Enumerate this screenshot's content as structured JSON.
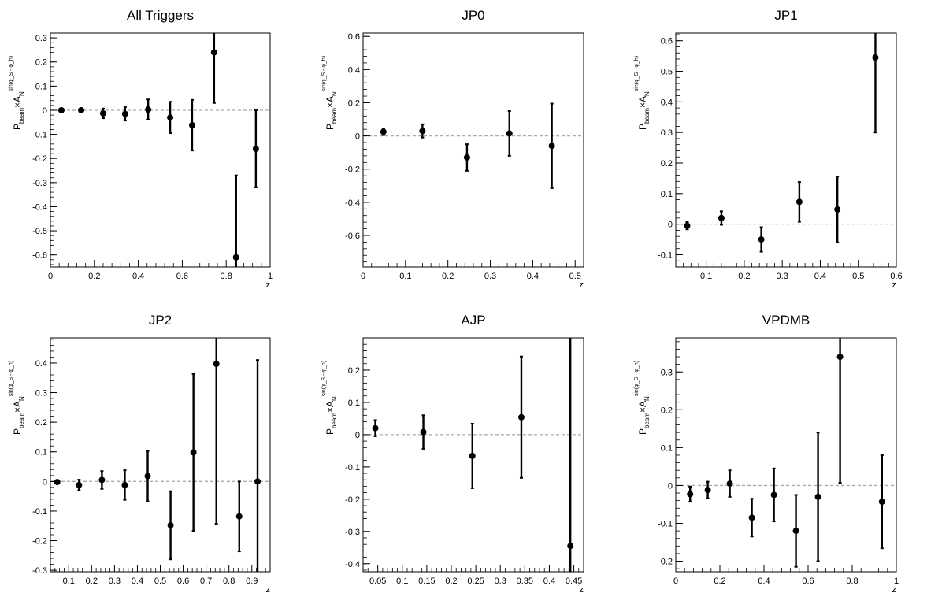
{
  "chart_data": [
    {
      "type": "scatter",
      "title": "All Triggers",
      "xlabel": "z",
      "ylabel": {
        "main": "P",
        "sub": "beam",
        "times": "×A",
        "sub2": "N",
        "sup": "sin(φ_S - φ_h)"
      },
      "xlim": [
        0,
        1.0
      ],
      "ylim": [
        -0.65,
        0.32
      ],
      "xticks": [
        0,
        0.2,
        0.4,
        0.6,
        0.8,
        1
      ],
      "xtick_labels": [
        "0",
        "0.2",
        "0.4",
        "0.6",
        "0.8",
        "1"
      ],
      "yticks": [
        0.3,
        0.2,
        0.1,
        0,
        -0.1,
        -0.2,
        -0.3,
        -0.4,
        -0.5,
        -0.6
      ],
      "ytick_labels": [
        "0.3",
        "0.2",
        "0.1",
        "0",
        "-0.1",
        "-0.2",
        "-0.3",
        "-0.4",
        "-0.5",
        "-0.6"
      ],
      "zero_line": true,
      "points": [
        {
          "x": 0.05,
          "y": 0.0,
          "err": 0.003
        },
        {
          "x": 0.14,
          "y": 0.0,
          "err": 0.004
        },
        {
          "x": 0.24,
          "y": -0.013,
          "err": 0.02
        },
        {
          "x": 0.34,
          "y": -0.015,
          "err": 0.028
        },
        {
          "x": 0.445,
          "y": 0.003,
          "err": 0.042
        },
        {
          "x": 0.545,
          "y": -0.03,
          "err": 0.065
        },
        {
          "x": 0.645,
          "y": -0.062,
          "err": 0.105
        },
        {
          "x": 0.745,
          "y": 0.24,
          "err": 0.21
        },
        {
          "x": 0.845,
          "y": -0.61,
          "err": 0.34
        },
        {
          "x": 0.935,
          "y": -0.16,
          "err": 0.16
        }
      ]
    },
    {
      "type": "scatter",
      "title": "JP0",
      "xlabel": "z",
      "ylabel": {
        "main": "P",
        "sub": "beam",
        "times": "×A",
        "sub2": "N",
        "sup": "sin(φ_S - φ_h)"
      },
      "xlim": [
        0,
        0.52
      ],
      "ylim": [
        -0.79,
        0.62
      ],
      "xticks": [
        0,
        0.1,
        0.2,
        0.3,
        0.4,
        0.5
      ],
      "xtick_labels": [
        "0",
        "0.1",
        "0.2",
        "0.3",
        "0.4",
        "0.5"
      ],
      "yticks": [
        0.6,
        0.4,
        0.2,
        0,
        -0.2,
        -0.4,
        -0.6
      ],
      "ytick_labels": [
        "0.6",
        "0.4",
        "0.2",
        "0",
        "-0.2",
        "-0.4",
        "-0.6"
      ],
      "zero_line": true,
      "points": [
        {
          "x": 0.048,
          "y": 0.025,
          "err": 0.02
        },
        {
          "x": 0.14,
          "y": 0.03,
          "err": 0.04
        },
        {
          "x": 0.245,
          "y": -0.13,
          "err": 0.08
        },
        {
          "x": 0.345,
          "y": 0.015,
          "err": 0.135
        },
        {
          "x": 0.445,
          "y": -0.06,
          "err": 0.255
        }
      ]
    },
    {
      "type": "scatter",
      "title": "JP1",
      "xlabel": "z",
      "ylabel": {
        "main": "P",
        "sub": "beam",
        "times": "×A",
        "sub2": "N",
        "sup": "sin(φ_S - φ_h)"
      },
      "xlim": [
        0.02,
        0.6
      ],
      "ylim": [
        -0.14,
        0.625
      ],
      "xticks": [
        0.1,
        0.2,
        0.3,
        0.4,
        0.5,
        0.6
      ],
      "xtick_labels": [
        "0.1",
        "0.2",
        "0.3",
        "0.4",
        "0.5",
        "0.6"
      ],
      "yticks": [
        0.6,
        0.5,
        0.4,
        0.3,
        0.2,
        0.1,
        0,
        -0.1
      ],
      "ytick_labels": [
        "0.6",
        "0.5",
        "0.4",
        "0.3",
        "0.2",
        "0.1",
        "0",
        "-0.1"
      ],
      "zero_line": true,
      "points": [
        {
          "x": 0.05,
          "y": -0.005,
          "err": 0.012
        },
        {
          "x": 0.14,
          "y": 0.02,
          "err": 0.022
        },
        {
          "x": 0.245,
          "y": -0.05,
          "err": 0.04
        },
        {
          "x": 0.345,
          "y": 0.073,
          "err": 0.065
        },
        {
          "x": 0.445,
          "y": 0.048,
          "err": 0.108
        },
        {
          "x": 0.545,
          "y": 0.545,
          "err": 0.245
        }
      ]
    },
    {
      "type": "scatter",
      "title": "JP2",
      "xlabel": "z",
      "ylabel": {
        "main": "P",
        "sub": "beam",
        "times": "×A",
        "sub2": "N",
        "sup": "sin(φ_S - φ_h)"
      },
      "xlim": [
        0.02,
        0.98
      ],
      "ylim": [
        -0.305,
        0.485
      ],
      "xticks": [
        0.1,
        0.2,
        0.3,
        0.4,
        0.5,
        0.6,
        0.7,
        0.8,
        0.9
      ],
      "xtick_labels": [
        "0.1",
        "0.2",
        "0.3",
        "0.4",
        "0.5",
        "0.6",
        "0.7",
        "0.8",
        "0.9"
      ],
      "yticks": [
        0.4,
        0.3,
        0.2,
        0.1,
        0,
        -0.1,
        -0.2,
        -0.3
      ],
      "ytick_labels": [
        "0.4",
        "0.3",
        "0.2",
        "0.1",
        "0",
        "-0.1",
        "-0.2",
        "-0.3"
      ],
      "zero_line": true,
      "points": [
        {
          "x": 0.05,
          "y": -0.002,
          "err": 0.004
        },
        {
          "x": 0.145,
          "y": -0.012,
          "err": 0.018
        },
        {
          "x": 0.245,
          "y": 0.005,
          "err": 0.03
        },
        {
          "x": 0.345,
          "y": -0.012,
          "err": 0.05
        },
        {
          "x": 0.445,
          "y": 0.018,
          "err": 0.085
        },
        {
          "x": 0.545,
          "y": -0.148,
          "err": 0.115
        },
        {
          "x": 0.645,
          "y": 0.098,
          "err": 0.265
        },
        {
          "x": 0.745,
          "y": 0.397,
          "err": 0.54
        },
        {
          "x": 0.845,
          "y": -0.118,
          "err": 0.118
        },
        {
          "x": 0.925,
          "y": 0.0,
          "err": 0.41
        }
      ]
    },
    {
      "type": "scatter",
      "title": "AJP",
      "xlabel": "z",
      "ylabel": {
        "main": "P",
        "sub": "beam",
        "times": "×A",
        "sub2": "N",
        "sup": "sin(φ_S - φ_h)"
      },
      "xlim": [
        0.02,
        0.47
      ],
      "ylim": [
        -0.425,
        0.3
      ],
      "xticks": [
        0.05,
        0.1,
        0.15,
        0.2,
        0.25,
        0.3,
        0.35,
        0.4,
        0.45
      ],
      "xtick_labels": [
        "0.05",
        "0.1",
        "0.15",
        "0.2",
        "0.25",
        "0.3",
        "0.35",
        "0.4",
        "0.45"
      ],
      "yticks": [
        0.2,
        0.1,
        0,
        -0.1,
        -0.2,
        -0.3,
        -0.4
      ],
      "ytick_labels": [
        "0.2",
        "0.1",
        "0",
        "-0.1",
        "-0.2",
        "-0.3",
        "-0.4"
      ],
      "zero_line": true,
      "points": [
        {
          "x": 0.045,
          "y": 0.02,
          "err": 0.025
        },
        {
          "x": 0.143,
          "y": 0.008,
          "err": 0.052
        },
        {
          "x": 0.243,
          "y": -0.066,
          "err": 0.1
        },
        {
          "x": 0.343,
          "y": 0.054,
          "err": 0.188
        },
        {
          "x": 0.443,
          "y": -0.345,
          "err": 0.7
        }
      ]
    },
    {
      "type": "scatter",
      "title": "VPDMB",
      "xlabel": "z",
      "ylabel": {
        "main": "P",
        "sub": "beam",
        "times": "×A",
        "sub2": "N",
        "sup": "sin(φ_S - φ_h)"
      },
      "xlim": [
        0,
        1.0
      ],
      "ylim": [
        -0.228,
        0.39
      ],
      "xticks": [
        0,
        0.2,
        0.4,
        0.6,
        0.8,
        1
      ],
      "xtick_labels": [
        "0",
        "0.2",
        "0.4",
        "0.6",
        "0.8",
        "1"
      ],
      "yticks": [
        0.3,
        0.2,
        0.1,
        0,
        -0.1,
        -0.2
      ],
      "ytick_labels": [
        "0.3",
        "0.2",
        "0.1",
        "0",
        "-0.1",
        "-0.2"
      ],
      "zero_line": true,
      "points": [
        {
          "x": 0.065,
          "y": -0.023,
          "err": 0.02
        },
        {
          "x": 0.145,
          "y": -0.012,
          "err": 0.022
        },
        {
          "x": 0.245,
          "y": 0.005,
          "err": 0.035
        },
        {
          "x": 0.345,
          "y": -0.085,
          "err": 0.05
        },
        {
          "x": 0.445,
          "y": -0.025,
          "err": 0.07
        },
        {
          "x": 0.545,
          "y": -0.12,
          "err": 0.095
        },
        {
          "x": 0.645,
          "y": -0.03,
          "err": 0.17
        },
        {
          "x": 0.745,
          "y": 0.34,
          "err": 0.333
        },
        {
          "x": 0.935,
          "y": -0.043,
          "err": 0.123
        }
      ]
    }
  ]
}
